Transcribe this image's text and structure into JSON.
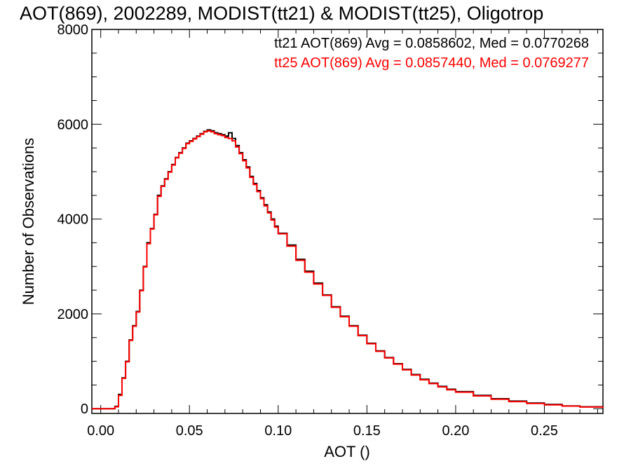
{
  "chart_data": {
    "type": "line",
    "step": true,
    "title": "AOT(869), 2002289, MODIST(tt21) & MODIST(tt25), Oligotrop",
    "xlabel": "AOT ()",
    "ylabel": "Number of Observations",
    "xlim": [
      -0.005,
      0.283
    ],
    "ylim": [
      -100,
      8000
    ],
    "x_ticks": [
      0.0,
      0.05,
      0.1,
      0.15,
      0.2,
      0.25
    ],
    "x_tick_labels": [
      "0.00",
      "0.05",
      "0.10",
      "0.15",
      "0.20",
      "0.25"
    ],
    "y_ticks": [
      0,
      2000,
      4000,
      6000,
      8000
    ],
    "y_tick_labels": [
      "0",
      "2000",
      "4000",
      "6000",
      "8000"
    ],
    "grid": false,
    "legend_placement": "top-right",
    "legend": [
      {
        "text": "tt21 AOT(869) Avg = 0.0858602, Med = 0.0770268",
        "color": "#000000"
      },
      {
        "text": "tt25 AOT(869) Avg = 0.0857440, Med = 0.0769277",
        "color": "#ff0000"
      }
    ],
    "series": [
      {
        "color": "#000000",
        "x": [
          -0.005,
          0.0,
          0.005,
          0.008,
          0.01,
          0.012,
          0.014,
          0.016,
          0.018,
          0.02,
          0.022,
          0.024,
          0.026,
          0.028,
          0.03,
          0.032,
          0.034,
          0.036,
          0.038,
          0.04,
          0.042,
          0.044,
          0.046,
          0.048,
          0.05,
          0.052,
          0.054,
          0.056,
          0.058,
          0.06,
          0.062,
          0.064,
          0.066,
          0.068,
          0.07,
          0.072,
          0.074,
          0.076,
          0.078,
          0.08,
          0.082,
          0.084,
          0.086,
          0.088,
          0.09,
          0.092,
          0.094,
          0.096,
          0.098,
          0.1,
          0.105,
          0.11,
          0.115,
          0.12,
          0.125,
          0.13,
          0.135,
          0.14,
          0.145,
          0.15,
          0.155,
          0.16,
          0.165,
          0.17,
          0.175,
          0.18,
          0.185,
          0.19,
          0.195,
          0.2,
          0.21,
          0.22,
          0.23,
          0.24,
          0.25,
          0.26,
          0.27,
          0.283
        ],
        "values": [
          0,
          0,
          0,
          50,
          300,
          650,
          1000,
          1450,
          1750,
          2050,
          2500,
          3000,
          3500,
          3800,
          4100,
          4500,
          4700,
          4850,
          5000,
          5150,
          5300,
          5400,
          5500,
          5600,
          5650,
          5700,
          5750,
          5800,
          5850,
          5880,
          5860,
          5820,
          5800,
          5780,
          5750,
          5820,
          5700,
          5550,
          5400,
          5250,
          5100,
          4900,
          4750,
          4600,
          4450,
          4300,
          4150,
          4000,
          3850,
          3700,
          3450,
          3150,
          2900,
          2650,
          2400,
          2150,
          1950,
          1750,
          1550,
          1380,
          1220,
          1080,
          950,
          830,
          720,
          620,
          540,
          470,
          410,
          360,
          280,
          210,
          160,
          120,
          90,
          60,
          40,
          20
        ]
      },
      {
        "color": "#ff0000",
        "x": [
          -0.005,
          0.0,
          0.005,
          0.008,
          0.01,
          0.012,
          0.014,
          0.016,
          0.018,
          0.02,
          0.022,
          0.024,
          0.026,
          0.028,
          0.03,
          0.032,
          0.034,
          0.036,
          0.038,
          0.04,
          0.042,
          0.044,
          0.046,
          0.048,
          0.05,
          0.052,
          0.054,
          0.056,
          0.058,
          0.06,
          0.062,
          0.064,
          0.066,
          0.068,
          0.07,
          0.072,
          0.074,
          0.076,
          0.078,
          0.08,
          0.082,
          0.084,
          0.086,
          0.088,
          0.09,
          0.092,
          0.094,
          0.096,
          0.098,
          0.1,
          0.105,
          0.11,
          0.115,
          0.12,
          0.125,
          0.13,
          0.135,
          0.14,
          0.145,
          0.15,
          0.155,
          0.16,
          0.165,
          0.17,
          0.175,
          0.18,
          0.185,
          0.19,
          0.195,
          0.2,
          0.21,
          0.22,
          0.23,
          0.24,
          0.25,
          0.26,
          0.27,
          0.283
        ],
        "values": [
          0,
          0,
          0,
          40,
          280,
          640,
          990,
          1440,
          1740,
          2040,
          2490,
          2990,
          3480,
          3790,
          4090,
          4480,
          4690,
          4840,
          4990,
          5140,
          5290,
          5390,
          5490,
          5590,
          5640,
          5690,
          5740,
          5790,
          5840,
          5860,
          5840,
          5800,
          5780,
          5760,
          5720,
          5700,
          5650,
          5520,
          5380,
          5230,
          5080,
          4880,
          4730,
          4580,
          4430,
          4280,
          4130,
          3980,
          3830,
          3690,
          3430,
          3130,
          2880,
          2630,
          2390,
          2140,
          1940,
          1740,
          1540,
          1370,
          1210,
          1070,
          940,
          820,
          710,
          610,
          530,
          460,
          400,
          350,
          270,
          200,
          150,
          110,
          80,
          55,
          35,
          15
        ]
      }
    ]
  }
}
